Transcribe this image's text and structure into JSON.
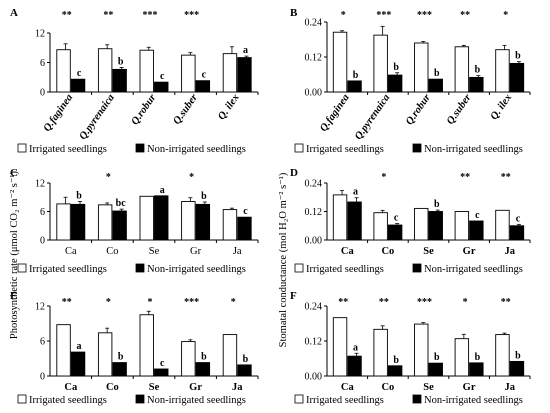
{
  "y_axis_labels": {
    "left": "Photosynthetic rate (μmol CO₂ m⁻² s⁻¹)",
    "right": "Stomatal conductance (mol H₂O m⁻² s⁻¹)"
  },
  "legend": {
    "irrigated": "Irrigated seedlings",
    "non_irrigated": "Non-irrigated seedlings"
  },
  "chart_data": [
    {
      "panel": "A",
      "type": "bar",
      "categories": [
        "Q.faginea",
        "Q.pyrenaica",
        "Q.robur",
        "Q.suber",
        "Q. ilex"
      ],
      "ylim": [
        0,
        12
      ],
      "yticks": [
        "0",
        "6",
        "12"
      ],
      "series": [
        {
          "name": "Irrigated seedlings",
          "values": [
            8.6,
            8.8,
            8.5,
            7.5,
            7.8
          ],
          "errors": [
            1.2,
            0.8,
            0.6,
            0.5,
            1.4
          ]
        },
        {
          "name": "Non-irrigated seedlings",
          "values": [
            2.6,
            4.6,
            2.0,
            2.3,
            7.0
          ],
          "errors": [
            0,
            0.4,
            0,
            0,
            0.3
          ]
        }
      ],
      "significance": [
        "**",
        "**",
        "***",
        "***",
        ""
      ],
      "letters": [
        "c",
        "b",
        "c",
        "c",
        "a"
      ]
    },
    {
      "panel": "B",
      "type": "bar",
      "categories": [
        "Q.faginea",
        "Q.pyrenaica",
        "Q.robur",
        "Q.suber",
        "Q. ilex"
      ],
      "ylim": [
        0,
        0.24
      ],
      "yticks": [
        "0.00",
        "0.12",
        "0.24"
      ],
      "series": [
        {
          "name": "Irrigated seedlings",
          "values": [
            0.205,
            0.195,
            0.168,
            0.155,
            0.145
          ],
          "errors": [
            0.005,
            0.03,
            0.005,
            0.005,
            0.015
          ]
        },
        {
          "name": "Non-irrigated seedlings",
          "values": [
            0.038,
            0.058,
            0.044,
            0.05,
            0.098
          ],
          "errors": [
            0,
            0.008,
            0,
            0.006,
            0.006
          ]
        }
      ],
      "significance": [
        "*",
        "***",
        "***",
        "**",
        "*"
      ],
      "letters": [
        "b",
        "b",
        "b",
        "b",
        "b"
      ]
    },
    {
      "panel": "C",
      "type": "bar",
      "categories": [
        "Ca",
        "Co",
        "Se",
        "Gr",
        "Ja"
      ],
      "ylim": [
        0,
        12
      ],
      "yticks": [
        "0",
        "6",
        "12"
      ],
      "series": [
        {
          "name": "Irrigated seedlings",
          "values": [
            7.6,
            7.4,
            9.2,
            8.1,
            6.4
          ],
          "errors": [
            1.4,
            0.4,
            0,
            0.8,
            0.3
          ]
        },
        {
          "name": "Non-irrigated seedlings",
          "values": [
            7.5,
            6.1,
            9.3,
            7.5,
            4.8
          ],
          "errors": [
            0.6,
            0.4,
            0,
            0.5,
            0
          ]
        }
      ],
      "significance": [
        "",
        "*",
        "",
        "*",
        ""
      ],
      "letters": [
        "b",
        "bc",
        "a",
        "b",
        "c"
      ]
    },
    {
      "panel": "D",
      "type": "bar",
      "categories": [
        "Ca",
        "Co",
        "Se",
        "Gr",
        "Ja"
      ],
      "ylim": [
        0,
        0.24
      ],
      "yticks": [
        "0.00",
        "0.12",
        "0.24"
      ],
      "series": [
        {
          "name": "Irrigated seedlings",
          "values": [
            0.19,
            0.115,
            0.133,
            0.12,
            0.125
          ],
          "errors": [
            0.018,
            0.01,
            0,
            0,
            0
          ]
        },
        {
          "name": "Non-irrigated seedlings",
          "values": [
            0.16,
            0.063,
            0.12,
            0.08,
            0.06
          ],
          "errors": [
            0.018,
            0.006,
            0.006,
            0,
            0.006
          ]
        }
      ],
      "significance": [
        "",
        "*",
        "",
        "**",
        "**"
      ],
      "letters": [
        "a",
        "c",
        "b",
        "c",
        "c"
      ]
    },
    {
      "panel": "E",
      "type": "bar",
      "categories": [
        "Ca",
        "Co",
        "Se",
        "Gr",
        "Ja"
      ],
      "ylim": [
        0,
        12
      ],
      "yticks": [
        "0",
        "6",
        "12"
      ],
      "series": [
        {
          "name": "Irrigated seedlings",
          "values": [
            8.8,
            7.4,
            10.5,
            5.9,
            7.1
          ],
          "errors": [
            0,
            0.8,
            0.6,
            0.3,
            0
          ]
        },
        {
          "name": "Non-irrigated seedlings",
          "values": [
            4.1,
            2.3,
            1.2,
            2.3,
            1.9
          ],
          "errors": [
            0,
            0,
            0,
            0,
            0
          ]
        }
      ],
      "significance": [
        "**",
        "*",
        "*",
        "***",
        "*"
      ],
      "letters": [
        "a",
        "b",
        "c",
        "b",
        "b"
      ]
    },
    {
      "panel": "F",
      "type": "bar",
      "categories": [
        "Ca",
        "Co",
        "Se",
        "Gr",
        "Ja"
      ],
      "ylim": [
        0,
        0.24
      ],
      "yticks": [
        "0.00",
        "0.12",
        "0.24"
      ],
      "series": [
        {
          "name": "Irrigated seedlings",
          "values": [
            0.2,
            0.16,
            0.178,
            0.128,
            0.142
          ],
          "errors": [
            0,
            0.012,
            0.005,
            0.015,
            0.005
          ]
        },
        {
          "name": "Non-irrigated seedlings",
          "values": [
            0.068,
            0.035,
            0.044,
            0.045,
            0.05
          ],
          "errors": [
            0.01,
            0,
            0,
            0,
            0
          ]
        }
      ],
      "significance": [
        "**",
        "**",
        "***",
        "*",
        "**"
      ],
      "letters": [
        "a",
        "b",
        "b",
        "b",
        "b"
      ]
    }
  ]
}
